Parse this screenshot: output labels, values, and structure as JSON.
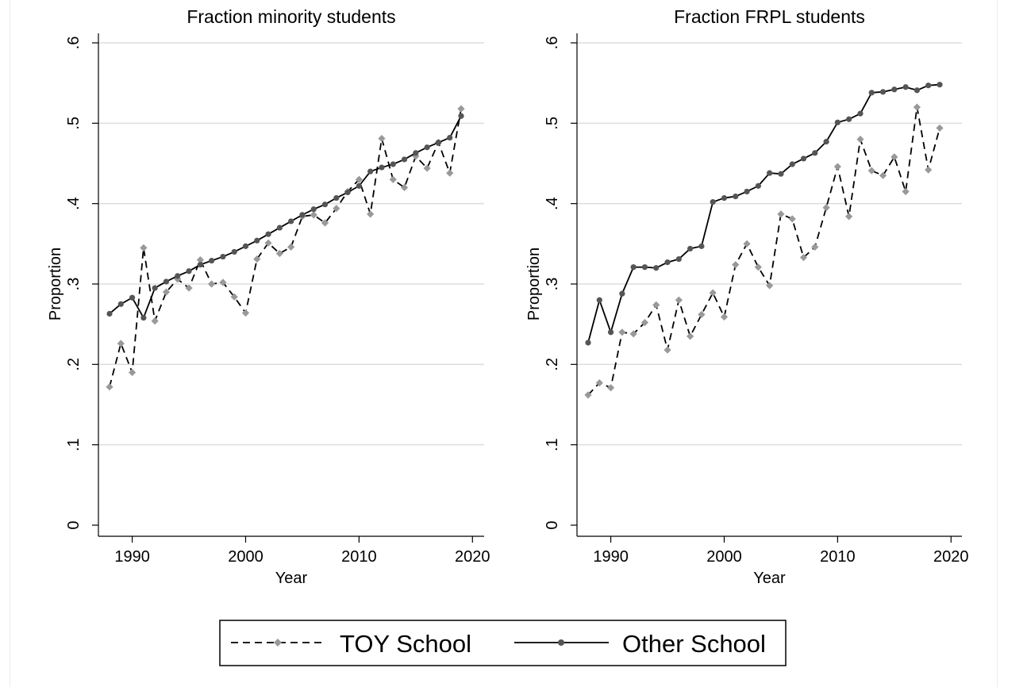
{
  "colors": {
    "toy": "#999999",
    "other": "#000000",
    "grid": "#dddddd",
    "axis": "#000000"
  },
  "legend": {
    "items": [
      {
        "key": "toy",
        "label": "TOY School",
        "line": "dashed",
        "marker": "diamond"
      },
      {
        "key": "other",
        "label": "Other School",
        "line": "solid",
        "marker": "circle"
      }
    ]
  },
  "chart_data": [
    {
      "type": "line",
      "title": "Fraction minority students",
      "xlabel": "Year",
      "ylabel": "Proportion",
      "xlim": [
        1987,
        2021
      ],
      "ylim": [
        0,
        0.6
      ],
      "xticks": [
        1990,
        2000,
        2010,
        2020
      ],
      "yticks": [
        0,
        0.1,
        0.2,
        0.3,
        0.4,
        0.5,
        0.6
      ],
      "ytick_labels": [
        "0",
        ".1",
        ".2",
        ".3",
        ".4",
        ".5",
        ".6"
      ],
      "grid": true,
      "x": [
        1988,
        1989,
        1990,
        1991,
        1992,
        1993,
        1994,
        1995,
        1996,
        1997,
        1998,
        1999,
        2000,
        2001,
        2002,
        2003,
        2004,
        2005,
        2006,
        2007,
        2008,
        2009,
        2010,
        2011,
        2012,
        2013,
        2014,
        2015,
        2016,
        2017,
        2018,
        2019
      ],
      "series": [
        {
          "name": "TOY School",
          "key": "toy",
          "values": [
            0.172,
            0.226,
            0.19,
            0.345,
            0.254,
            0.29,
            0.306,
            0.295,
            0.33,
            0.3,
            0.302,
            0.284,
            0.264,
            0.331,
            0.351,
            0.338,
            0.346,
            0.384,
            0.386,
            0.376,
            0.394,
            0.415,
            0.43,
            0.387,
            0.481,
            0.43,
            0.42,
            0.459,
            0.444,
            0.476,
            0.438,
            0.518
          ]
        },
        {
          "name": "Other School",
          "key": "other",
          "values": [
            0.263,
            0.275,
            0.283,
            0.258,
            0.295,
            0.303,
            0.31,
            0.316,
            0.324,
            0.329,
            0.334,
            0.34,
            0.347,
            0.354,
            0.362,
            0.37,
            0.378,
            0.386,
            0.393,
            0.399,
            0.407,
            0.414,
            0.422,
            0.44,
            0.445,
            0.449,
            0.455,
            0.463,
            0.47,
            0.476,
            0.482,
            0.509
          ]
        }
      ]
    },
    {
      "type": "line",
      "title": "Fraction FRPL students",
      "xlabel": "Year",
      "ylabel": "Proportion",
      "xlim": [
        1987,
        2021
      ],
      "ylim": [
        0,
        0.6
      ],
      "xticks": [
        1990,
        2000,
        2010,
        2020
      ],
      "yticks": [
        0,
        0.1,
        0.2,
        0.3,
        0.4,
        0.5,
        0.6
      ],
      "ytick_labels": [
        "0",
        ".1",
        ".2",
        ".3",
        ".4",
        ".5",
        ".6"
      ],
      "grid": true,
      "x": [
        1988,
        1989,
        1990,
        1991,
        1992,
        1993,
        1994,
        1995,
        1996,
        1997,
        1998,
        1999,
        2000,
        2001,
        2002,
        2003,
        2004,
        2005,
        2006,
        2007,
        2008,
        2009,
        2010,
        2011,
        2012,
        2013,
        2014,
        2015,
        2016,
        2017,
        2018,
        2019
      ],
      "series": [
        {
          "name": "TOY School",
          "key": "toy",
          "values": [
            0.162,
            0.177,
            0.171,
            0.24,
            0.238,
            0.252,
            0.274,
            0.218,
            0.28,
            0.235,
            0.262,
            0.289,
            0.259,
            0.324,
            0.35,
            0.321,
            0.298,
            0.387,
            0.381,
            0.333,
            0.346,
            0.395,
            0.446,
            0.384,
            0.48,
            0.441,
            0.435,
            0.458,
            0.415,
            0.52,
            0.442,
            0.494
          ]
        },
        {
          "name": "Other School",
          "key": "other",
          "values": [
            0.227,
            0.28,
            0.24,
            0.288,
            0.321,
            0.321,
            0.32,
            0.327,
            0.331,
            0.344,
            0.347,
            0.402,
            0.407,
            0.409,
            0.415,
            0.422,
            0.438,
            0.437,
            0.449,
            0.456,
            0.463,
            0.477,
            0.501,
            0.505,
            0.512,
            0.538,
            0.539,
            0.542,
            0.545,
            0.541,
            0.547,
            0.548
          ]
        }
      ]
    }
  ]
}
